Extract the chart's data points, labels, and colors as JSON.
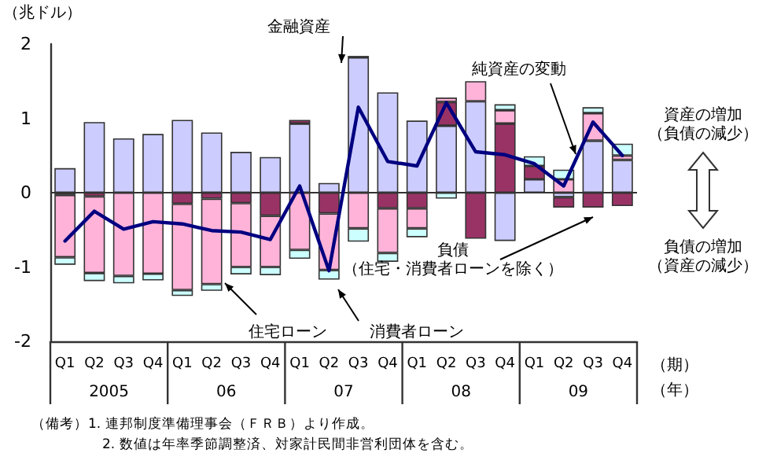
{
  "chart_data": {
    "type": "bar",
    "stacked": true,
    "ylabel": "（兆ドル）",
    "xlabel": "（期）",
    "categories": [
      "Q1",
      "Q2",
      "Q3",
      "Q4",
      "Q1",
      "Q2",
      "Q3",
      "Q4",
      "Q1",
      "Q2",
      "Q3",
      "Q4",
      "Q1",
      "Q2",
      "Q3",
      "Q4",
      "Q1",
      "Q2",
      "Q3",
      "Q4"
    ],
    "ylim": [
      -2,
      2
    ],
    "ref_lines": [
      {
        "axis": "y",
        "value": 0,
        "color": "#333333"
      }
    ],
    "yticks": [
      -2,
      -1,
      0,
      1,
      2
    ],
    "grid": false,
    "legend": false,
    "series": [
      {
        "name": "金融資産",
        "color": "#ccccff",
        "values": [
          0.33,
          0.95,
          0.73,
          0.79,
          0.98,
          0.81,
          0.55,
          0.48,
          0.93,
          0.13,
          1.82,
          1.35,
          0.97,
          0.9,
          1.23,
          -0.65,
          0.18,
          -0.06,
          0.7,
          0.44
        ]
      },
      {
        "name": "負債（住宅・消費者ローンを除く）",
        "color": "#993366",
        "values": [
          -0.03,
          -0.05,
          null,
          null,
          -0.15,
          -0.08,
          -0.14,
          -0.31,
          0.05,
          -0.28,
          0.02,
          -0.21,
          -0.21,
          0.32,
          -0.62,
          0.93,
          0.18,
          -0.14,
          -0.2,
          -0.18
        ]
      },
      {
        "name": "住宅ローン",
        "color": "#ffb3d9",
        "values": [
          -0.84,
          -1.03,
          -1.12,
          -1.09,
          -1.16,
          -1.15,
          -0.86,
          -0.69,
          -0.77,
          -0.76,
          -0.48,
          -0.6,
          -0.27,
          0.06,
          0.27,
          0.18,
          null,
          0.18,
          0.37,
          0.06
        ]
      },
      {
        "name": "消費者ローン",
        "color": "#ccffff",
        "values": [
          -0.1,
          -0.11,
          -0.1,
          -0.09,
          -0.08,
          -0.09,
          -0.1,
          -0.11,
          -0.12,
          -0.13,
          -0.18,
          -0.12,
          -0.12,
          -0.08,
          null,
          0.08,
          0.13,
          0.13,
          0.08,
          0.16
        ]
      },
      {
        "name": "純資産の変動",
        "type": "line",
        "color": "#000080",
        "line_style": "solid",
        "marker": "none",
        "values": [
          -0.65,
          -0.25,
          -0.49,
          -0.39,
          -0.42,
          -0.51,
          -0.53,
          -0.63,
          0.09,
          -1.05,
          1.15,
          0.42,
          0.36,
          1.21,
          0.55,
          0.51,
          0.39,
          0.09,
          0.95,
          0.5
        ]
      }
    ],
    "annotations": [
      "2005",
      "06",
      "07",
      "08",
      "09",
      "（年）",
      "資産の増加（負債の減少）",
      "負債の増加（資産の減少）",
      "（備考）1. 連邦制度準備理事会（ＦＲＢ）より作成。",
      "2. 数値は年率季節調整済、対家計民間非営利団体を含む。"
    ]
  }
}
